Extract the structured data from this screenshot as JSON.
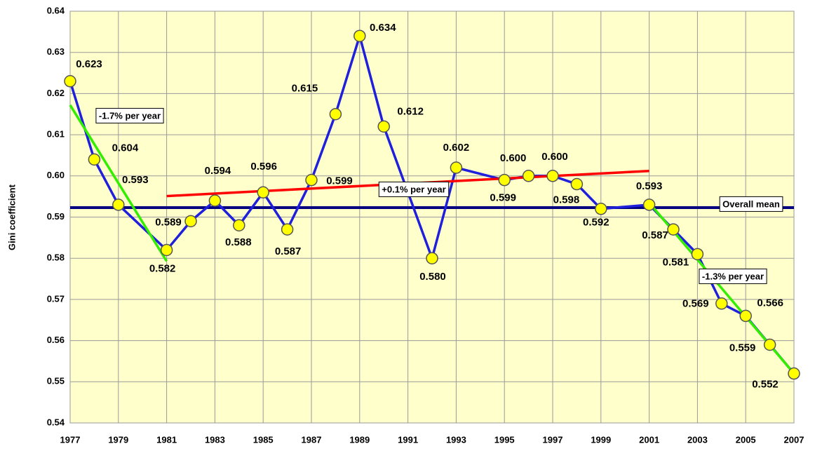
{
  "chart_data": {
    "type": "line",
    "y_label": "Gini coefficient",
    "x": [
      1977,
      1978,
      1979,
      1981,
      1982,
      1983,
      1984,
      1985,
      1986,
      1987,
      1988,
      1989,
      1990,
      1992,
      1993,
      1995,
      1996,
      1997,
      1998,
      1999,
      2001,
      2002,
      2003,
      2004,
      2005,
      2006,
      2007
    ],
    "series": [
      {
        "color": "#1f1fdc",
        "values": [
          0.623,
          0.604,
          0.593,
          0.582,
          0.589,
          0.594,
          0.588,
          0.596,
          0.587,
          0.599,
          0.615,
          0.634,
          0.612,
          0.58,
          0.602,
          0.599,
          0.6,
          0.6,
          0.598,
          0.592,
          0.593,
          0.587,
          0.581,
          0.569,
          0.566,
          0.559,
          0.552
        ],
        "value_labels": [
          "0.623",
          "0.604",
          "0.593",
          "0.582",
          "0.589",
          "0.594",
          "0.588",
          "0.596",
          "0.587",
          "0.599",
          "0.615",
          "0.634",
          "0.612",
          "0.580",
          "0.602",
          "0.599",
          "0.600",
          "0.600",
          "0.598",
          "0.592",
          "0.593",
          "0.587",
          "0.581",
          "0.569",
          "0.566",
          "0.559",
          "0.552"
        ]
      }
    ],
    "marker_color": "#ffff00",
    "mean": {
      "value": 0.5923,
      "label": "Overall mean",
      "color": "#000080"
    },
    "trend_lines": [
      {
        "x": [
          1977,
          1981
        ],
        "y": [
          0.6172,
          0.5793
        ],
        "color": "#33ee00",
        "label": "-1.7% per year"
      },
      {
        "x": [
          1981,
          2001
        ],
        "y": [
          0.5951,
          0.6012
        ],
        "color": "#ff0000",
        "label": "+0.1% per year"
      },
      {
        "x": [
          2001,
          2007
        ],
        "y": [
          0.5935,
          0.552
        ],
        "color": "#33ee00",
        "label": "-1.3% per year"
      }
    ],
    "xlim": [
      1977,
      2007
    ],
    "xticks": [
      1977,
      1979,
      1981,
      1983,
      1985,
      1987,
      1989,
      1991,
      1993,
      1995,
      1997,
      1999,
      2001,
      2003,
      2005,
      2007
    ],
    "ylim": [
      0.54,
      0.64
    ],
    "yticks": [
      0.54,
      0.55,
      0.56,
      0.57,
      0.58,
      0.59,
      {
        "value": 0.6,
        "label": "0.60"
      },
      0.61,
      0.62,
      0.63,
      0.64
    ],
    "grid": true,
    "background": "#ffffcc"
  }
}
